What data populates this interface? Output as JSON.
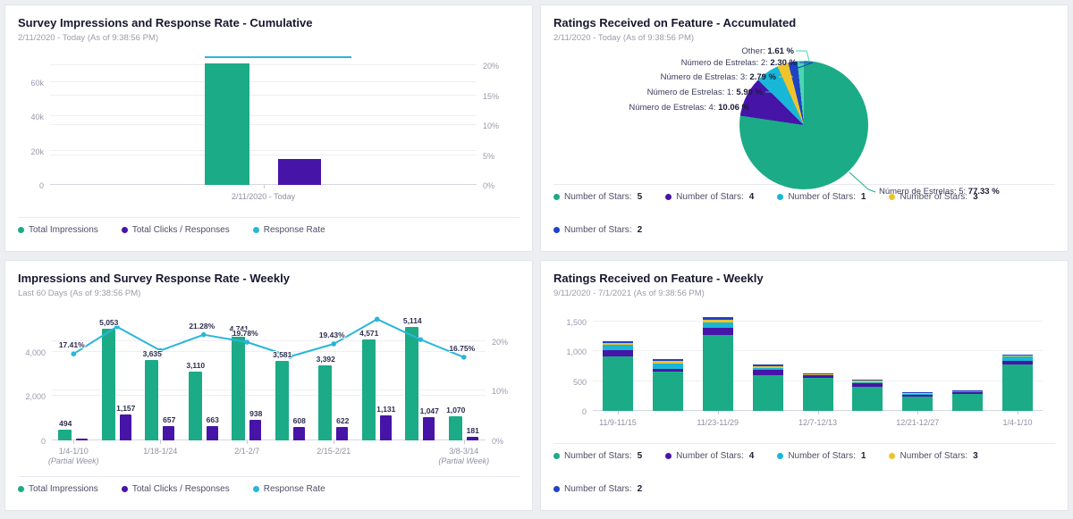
{
  "dashboard": {
    "background": "#edeef2"
  },
  "colors": {
    "green": "#1CAB87",
    "purple": "#4714A8",
    "cyan": "#18B7D7",
    "yellow": "#EEC32B",
    "blue": "#1E43C4",
    "mint": "#4AD6B0",
    "line_cyan": "#29B6D8"
  },
  "chart_data": [
    {
      "id": "survey-impressions-cumulative",
      "type": "bar",
      "title": "Survey Impressions and Response Rate - Cumulative",
      "subtitle": "2/11/2020 - Today (As of 9:38:56 PM)",
      "categories": [
        "2/11/2020 - Today"
      ],
      "series": [
        {
          "name": "Total Impressions",
          "color": "#1CAB87",
          "values": [
            71000
          ],
          "estimated": true
        },
        {
          "name": "Total Clicks / Responses",
          "color": "#4714A8",
          "values": [
            15000
          ],
          "estimated": true
        },
        {
          "name": "Response Rate",
          "type": "line",
          "axis": "right",
          "color": "#29B6D8",
          "values": [
            21.3
          ],
          "estimated": true
        }
      ],
      "left_axis": {
        "max": 76500,
        "ticks": [
          {
            "label": "0",
            "v": 0
          },
          {
            "label": "20k",
            "v": 20000
          },
          {
            "label": "40k",
            "v": 40000
          },
          {
            "label": "60k",
            "v": 60000
          }
        ]
      },
      "right_axis": {
        "max": 22,
        "ticks": [
          {
            "label": "0%",
            "v": 0
          },
          {
            "label": "5%",
            "v": 5
          },
          {
            "label": "10%",
            "v": 10
          },
          {
            "label": "15%",
            "v": 15
          },
          {
            "label": "20%",
            "v": 20
          }
        ]
      },
      "legend": [
        {
          "label": "Total Impressions",
          "color": "#1CAB87"
        },
        {
          "label": "Total Clicks / Responses",
          "color": "#4714A8"
        },
        {
          "label": "Response Rate",
          "color": "#29B6D8"
        }
      ]
    },
    {
      "id": "ratings-accumulated",
      "type": "pie",
      "title": "Ratings Received on Feature - Accumulated",
      "subtitle": "2/11/2020 - Today (As of 9:38:56 PM)",
      "slices": [
        {
          "label": "Número de Estrelas: 5",
          "value": 77.33,
          "pct_label": "77.33 %",
          "color": "#1CAB87"
        },
        {
          "label": "Número de Estrelas: 4",
          "value": 10.06,
          "pct_label": "10.06 %",
          "color": "#4714A8"
        },
        {
          "label": "Número de Estrelas: 1",
          "value": 5.9,
          "pct_label": "5.90 %",
          "color": "#18B7D7"
        },
        {
          "label": "Número de Estrelas: 3",
          "value": 2.79,
          "pct_label": "2.79 %",
          "color": "#EEC32B"
        },
        {
          "label": "Número de Estrelas: 2",
          "value": 2.3,
          "pct_label": "2.30 %",
          "color": "#1E43C4"
        },
        {
          "label": "Other",
          "value": 1.61,
          "pct_label": "1.61 %",
          "color": "#4AD6B0"
        }
      ],
      "legend": [
        {
          "label": "Number of Stars:",
          "value": "5",
          "color": "#1CAB87"
        },
        {
          "label": "Number of Stars:",
          "value": "4",
          "color": "#4714A8"
        },
        {
          "label": "Number of Stars:",
          "value": "1",
          "color": "#18B7D7"
        },
        {
          "label": "Number of Stars:",
          "value": "3",
          "color": "#EEC32B"
        },
        {
          "label": "Number of Stars:",
          "value": "2",
          "color": "#1E43C4"
        }
      ]
    },
    {
      "id": "impressions-weekly",
      "type": "bar+line",
      "title": "Impressions and Survey Response Rate - Weekly",
      "subtitle": "Last 60 Days (As of 9:38:56 PM)",
      "x_ticks": [
        {
          "index": 0,
          "label": "1/4-1/10",
          "sub": "(Partial Week)"
        },
        {
          "index": 2,
          "label": "1/18-1/24"
        },
        {
          "index": 4,
          "label": "2/1-2/7"
        },
        {
          "index": 6,
          "label": "2/15-2/21"
        },
        {
          "index": 9,
          "label": "3/8-3/14",
          "sub": "(Partial Week)"
        }
      ],
      "series": [
        {
          "name": "Total Impressions",
          "color": "#1CAB87",
          "values": [
            494,
            5053,
            3635,
            3110,
            4741,
            3581,
            3392,
            4571,
            5114,
            1070
          ],
          "labels": [
            "494",
            "5,053",
            "3,635",
            "3,110",
            "4,741",
            "3,581",
            "3,392",
            "4,571",
            "5,114",
            "1,070"
          ]
        },
        {
          "name": "Total Clicks / Responses",
          "color": "#4714A8",
          "values": [
            80,
            1157,
            657,
            663,
            938,
            608,
            622,
            1131,
            1047,
            181
          ],
          "labels": [
            "",
            "1,157",
            "657",
            "663",
            "938",
            "608",
            "622",
            "1,131",
            "1,047",
            "181"
          ]
        },
        {
          "name": "Response Rate",
          "type": "line",
          "axis": "right",
          "color": "#29B6D8",
          "values": [
            17.41,
            22.9,
            18.1,
            21.28,
            19.78,
            16.9,
            19.43,
            24.4,
            20.3,
            16.75
          ],
          "labels": [
            "17.41%",
            "",
            "",
            "21.28%",
            "19.78%",
            "",
            "19.43%",
            "",
            "",
            "16.75%"
          ],
          "unlabeled_values_estimated": true
        }
      ],
      "left_axis": {
        "max": 5600,
        "ticks": [
          {
            "label": "0",
            "v": 0
          },
          {
            "label": "2,000",
            "v": 2000
          },
          {
            "label": "4,000",
            "v": 4000
          }
        ]
      },
      "right_axis": {
        "max": 25,
        "ticks": [
          {
            "label": "0%",
            "v": 0
          },
          {
            "label": "10%",
            "v": 10
          },
          {
            "label": "20%",
            "v": 20
          }
        ]
      },
      "legend": [
        {
          "label": "Total Impressions",
          "color": "#1CAB87"
        },
        {
          "label": "Total Clicks / Responses",
          "color": "#4714A8"
        },
        {
          "label": "Response Rate",
          "color": "#29B6D8"
        }
      ]
    },
    {
      "id": "ratings-weekly",
      "type": "stacked-bar",
      "title": "Ratings Received on Feature - Weekly",
      "subtitle": "9/11/2020 - 7/1/2021 (As of 9:38:56 PM)",
      "bar_count": 9,
      "x_ticks": [
        {
          "index": 0,
          "label": "11/9-11/15"
        },
        {
          "index": 2,
          "label": "11/23-11/29"
        },
        {
          "index": 4,
          "label": "12/7-12/13"
        },
        {
          "index": 6,
          "label": "12/21-12/27"
        },
        {
          "index": 8,
          "label": "1/4-1/10"
        }
      ],
      "series": [
        {
          "name": "Number of Stars: 5",
          "color": "#1CAB87",
          "values": [
            920,
            660,
            1280,
            600,
            550,
            410,
            245,
            285,
            775
          ]
        },
        {
          "name": "Number of Stars: 4",
          "color": "#4714A8",
          "values": [
            100,
            45,
            115,
            85,
            45,
            55,
            25,
            25,
            70
          ]
        },
        {
          "name": "Number of Stars: 1",
          "color": "#18B7D7",
          "values": [
            90,
            95,
            90,
            40,
            15,
            20,
            15,
            25,
            75
          ]
        },
        {
          "name": "Number of Stars: 3",
          "color": "#EEC32B",
          "values": [
            25,
            45,
            40,
            25,
            8,
            25,
            8,
            3,
            20
          ]
        },
        {
          "name": "Number of Stars: 2",
          "color": "#1E43C4",
          "values": [
            40,
            30,
            45,
            25,
            15,
            10,
            25,
            8,
            8
          ]
        }
      ],
      "values_estimated": true,
      "left_axis": {
        "max": 1650,
        "ticks": [
          {
            "label": "0",
            "v": 0
          },
          {
            "label": "500",
            "v": 500
          },
          {
            "label": "1,000",
            "v": 1000
          },
          {
            "label": "1,500",
            "v": 1500
          }
        ]
      },
      "legend": [
        {
          "label": "Number of Stars:",
          "value": "5",
          "color": "#1CAB87"
        },
        {
          "label": "Number of Stars:",
          "value": "4",
          "color": "#4714A8"
        },
        {
          "label": "Number of Stars:",
          "value": "1",
          "color": "#18B7D7"
        },
        {
          "label": "Number of Stars:",
          "value": "3",
          "color": "#EEC32B"
        },
        {
          "label": "Number of Stars:",
          "value": "2",
          "color": "#1E43C4"
        }
      ]
    }
  ]
}
